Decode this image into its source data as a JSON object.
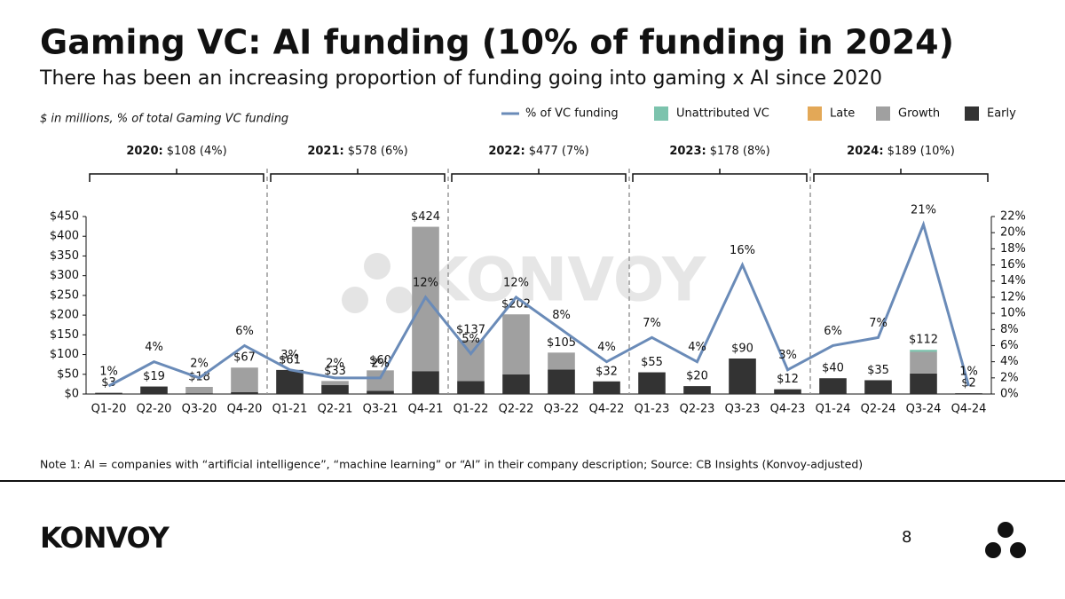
{
  "title": "Gaming VC: AI funding (10% of funding in 2024)",
  "subtitle": "There has been an increasing proportion of funding going into gaming x AI since 2020",
  "chart_data": {
    "type": "bar",
    "units_note": "$ in millions, % of total Gaming VC funding",
    "watermark": "KONVOY",
    "stacked": true,
    "categories": [
      "Q1-20",
      "Q2-20",
      "Q3-20",
      "Q4-20",
      "Q1-21",
      "Q2-21",
      "Q3-21",
      "Q4-21",
      "Q1-22",
      "Q2-22",
      "Q3-22",
      "Q4-22",
      "Q1-23",
      "Q2-23",
      "Q3-23",
      "Q4-23",
      "Q1-24",
      "Q2-24",
      "Q3-24",
      "Q4-24"
    ],
    "series": [
      {
        "name": "Early",
        "color": "#333333",
        "values": [
          3,
          19,
          2,
          5,
          61,
          23,
          8,
          58,
          33,
          50,
          62,
          32,
          55,
          20,
          90,
          12,
          40,
          35,
          52,
          2
        ]
      },
      {
        "name": "Growth",
        "color": "#a0a0a0",
        "values": [
          0,
          0,
          16,
          62,
          0,
          10,
          52,
          366,
          104,
          152,
          43,
          0,
          0,
          0,
          0,
          0,
          0,
          0,
          55,
          0
        ]
      },
      {
        "name": "Late",
        "color": "#e3a857",
        "values": [
          0,
          0,
          0,
          0,
          0,
          0,
          0,
          0,
          0,
          0,
          0,
          0,
          0,
          0,
          0,
          0,
          0,
          0,
          0,
          0
        ]
      },
      {
        "name": "Unattributed VC",
        "color": "#7cc3ad",
        "values": [
          0,
          0,
          0,
          0,
          0,
          0,
          0,
          0,
          0,
          0,
          0,
          0,
          0,
          0,
          0,
          0,
          0,
          0,
          5,
          0
        ]
      },
      {
        "name": "% of VC funding",
        "type": "line",
        "axis": "y2",
        "color": "#6a8bb8",
        "values": [
          1,
          4,
          2,
          6,
          3,
          2,
          2,
          12,
          5,
          12,
          8,
          4,
          7,
          4,
          16,
          3,
          6,
          7,
          21,
          1
        ],
        "value_labels": [
          "1%",
          "4%",
          "2%",
          "6%",
          "3%",
          "2%",
          "2%",
          "12%",
          "5%",
          "12%",
          "8%",
          "4%",
          "7%",
          "4%",
          "16%",
          "3%",
          "6%",
          "7%",
          "21%",
          "1%"
        ]
      }
    ],
    "totals": [
      3,
      19,
      18,
      67,
      61,
      33,
      60,
      424,
      137,
      202,
      105,
      32,
      55,
      20,
      90,
      12,
      40,
      35,
      112,
      2
    ],
    "total_labels": [
      "$3",
      "$19",
      "$18",
      "$67",
      "$61",
      "$33",
      "$60",
      "$424",
      "$137",
      "$202",
      "$105",
      "$32",
      "$55",
      "$20",
      "$90",
      "$12",
      "$40",
      "$35",
      "$112",
      "$2"
    ],
    "groups": [
      {
        "year": "2020:",
        "summary": "$108 (4%)"
      },
      {
        "year": "2021:",
        "summary": "$578 (6%)"
      },
      {
        "year": "2022:",
        "summary": "$477 (7%)"
      },
      {
        "year": "2023:",
        "summary": "$178 (8%)"
      },
      {
        "year": "2024:",
        "summary": "$189 (10%)"
      }
    ],
    "ylim": [
      0,
      450
    ],
    "yticks": [
      {
        "value": 0,
        "label": "$0"
      },
      {
        "value": 50,
        "label": "$50"
      },
      {
        "value": 100,
        "label": "$100"
      },
      {
        "value": 150,
        "label": "$150"
      },
      {
        "value": 200,
        "label": "$200"
      },
      {
        "value": 250,
        "label": "$250"
      },
      {
        "value": 300,
        "label": "$300"
      },
      {
        "value": 350,
        "label": "$350"
      },
      {
        "value": 400,
        "label": "$400"
      },
      {
        "value": 450,
        "label": "$450"
      }
    ],
    "y2lim": [
      0,
      22
    ],
    "y2ticks": [
      {
        "value": 0,
        "label": "0%"
      },
      {
        "value": 2,
        "label": "2%"
      },
      {
        "value": 4,
        "label": "4%"
      },
      {
        "value": 6,
        "label": "6%"
      },
      {
        "value": 8,
        "label": "8%"
      },
      {
        "value": 10,
        "label": "10%"
      },
      {
        "value": 12,
        "label": "12%"
      },
      {
        "value": 14,
        "label": "14%"
      },
      {
        "value": 16,
        "label": "16%"
      },
      {
        "value": 18,
        "label": "18%"
      },
      {
        "value": 20,
        "label": "20%"
      },
      {
        "value": 22,
        "label": "22%"
      }
    ],
    "legend": "top-right"
  },
  "note": "Note 1: AI = companies with “artificial intelligence”, “machine learning” or “AI” in their company description; Source: CB Insights (Konvoy-adjusted)",
  "footer": {
    "logo": "KONVOY",
    "page": "8"
  }
}
